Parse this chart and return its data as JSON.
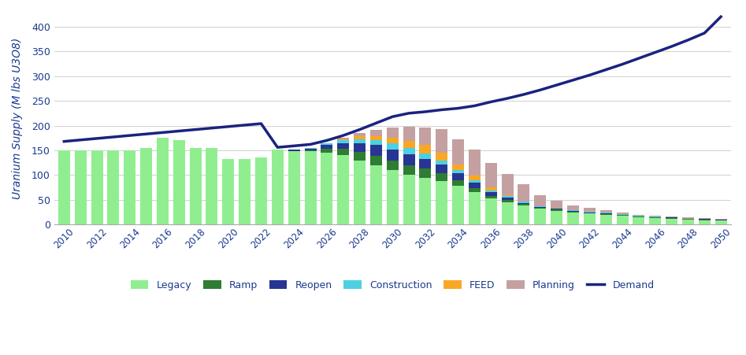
{
  "years": [
    2010,
    2011,
    2012,
    2013,
    2014,
    2015,
    2016,
    2017,
    2018,
    2019,
    2020,
    2021,
    2022,
    2023,
    2024,
    2025,
    2026,
    2027,
    2028,
    2029,
    2030,
    2031,
    2032,
    2033,
    2034,
    2035,
    2036,
    2037,
    2038,
    2039,
    2040,
    2041,
    2042,
    2043,
    2044,
    2045,
    2046,
    2047,
    2048,
    2049,
    2050
  ],
  "xtick_years": [
    2010,
    2012,
    2014,
    2016,
    2018,
    2020,
    2022,
    2024,
    2026,
    2028,
    2030,
    2032,
    2034,
    2036,
    2038,
    2040,
    2042,
    2044,
    2046,
    2048,
    2050
  ],
  "legacy": [
    150,
    150,
    150,
    150,
    150,
    155,
    175,
    170,
    155,
    155,
    133,
    132,
    135,
    152,
    149,
    148,
    145,
    140,
    130,
    120,
    110,
    100,
    95,
    88,
    78,
    65,
    53,
    45,
    38,
    32,
    28,
    25,
    22,
    20,
    18,
    15,
    13,
    12,
    10,
    9,
    8
  ],
  "ramp": [
    0,
    0,
    0,
    0,
    0,
    0,
    0,
    0,
    0,
    0,
    0,
    0,
    0,
    0,
    0,
    2,
    8,
    13,
    17,
    19,
    20,
    20,
    18,
    16,
    12,
    9,
    5,
    4,
    3,
    2,
    2,
    1,
    1,
    1,
    1,
    1,
    1,
    1,
    1,
    1,
    1
  ],
  "reopen": [
    0,
    0,
    0,
    0,
    0,
    0,
    0,
    0,
    0,
    0,
    0,
    0,
    0,
    0,
    2,
    3,
    8,
    12,
    18,
    22,
    22,
    22,
    20,
    18,
    14,
    10,
    7,
    5,
    3,
    2,
    2,
    2,
    2,
    2,
    1,
    1,
    1,
    1,
    1,
    1,
    1
  ],
  "construction": [
    0,
    0,
    0,
    0,
    0,
    0,
    0,
    0,
    0,
    0,
    0,
    0,
    0,
    0,
    1,
    2,
    3,
    5,
    8,
    10,
    12,
    12,
    10,
    8,
    6,
    5,
    4,
    3,
    2,
    1,
    1,
    1,
    1,
    1,
    1,
    1,
    1,
    1,
    0,
    0,
    0
  ],
  "feed": [
    0,
    0,
    0,
    0,
    0,
    0,
    0,
    0,
    0,
    0,
    0,
    0,
    0,
    0,
    0,
    0,
    1,
    2,
    5,
    8,
    12,
    15,
    18,
    15,
    12,
    10,
    6,
    3,
    1,
    0,
    0,
    0,
    0,
    0,
    0,
    0,
    0,
    0,
    0,
    0,
    0
  ],
  "planning": [
    0,
    0,
    0,
    0,
    0,
    0,
    0,
    0,
    0,
    0,
    0,
    0,
    0,
    0,
    0,
    0,
    0,
    3,
    7,
    12,
    20,
    28,
    35,
    48,
    50,
    52,
    50,
    42,
    35,
    22,
    15,
    10,
    8,
    5,
    3,
    2,
    2,
    2,
    2,
    2,
    2
  ],
  "demand": [
    168,
    171,
    174,
    177,
    180,
    183,
    186,
    189,
    192,
    195,
    198,
    201,
    204,
    156,
    159,
    162,
    170,
    180,
    192,
    205,
    218,
    225,
    228,
    232,
    235,
    240,
    248,
    255,
    263,
    272,
    282,
    292,
    302,
    313,
    324,
    336,
    348,
    360,
    373,
    387,
    420
  ],
  "colors": {
    "legacy": "#90EE90",
    "ramp": "#2e7d32",
    "reopen": "#283593",
    "construction": "#4dd0e1",
    "feed": "#f9a825",
    "planning": "#c4a0a0",
    "demand": "#1a237e"
  },
  "ylabel": "Uranium Supply (M lbs U3O8)",
  "ylim": [
    0,
    430
  ],
  "yticks": [
    0,
    50,
    100,
    150,
    200,
    250,
    300,
    350,
    400
  ],
  "background_color": "#ffffff",
  "grid_color": "#d0d0d0",
  "label_color": "#1a3a8f"
}
